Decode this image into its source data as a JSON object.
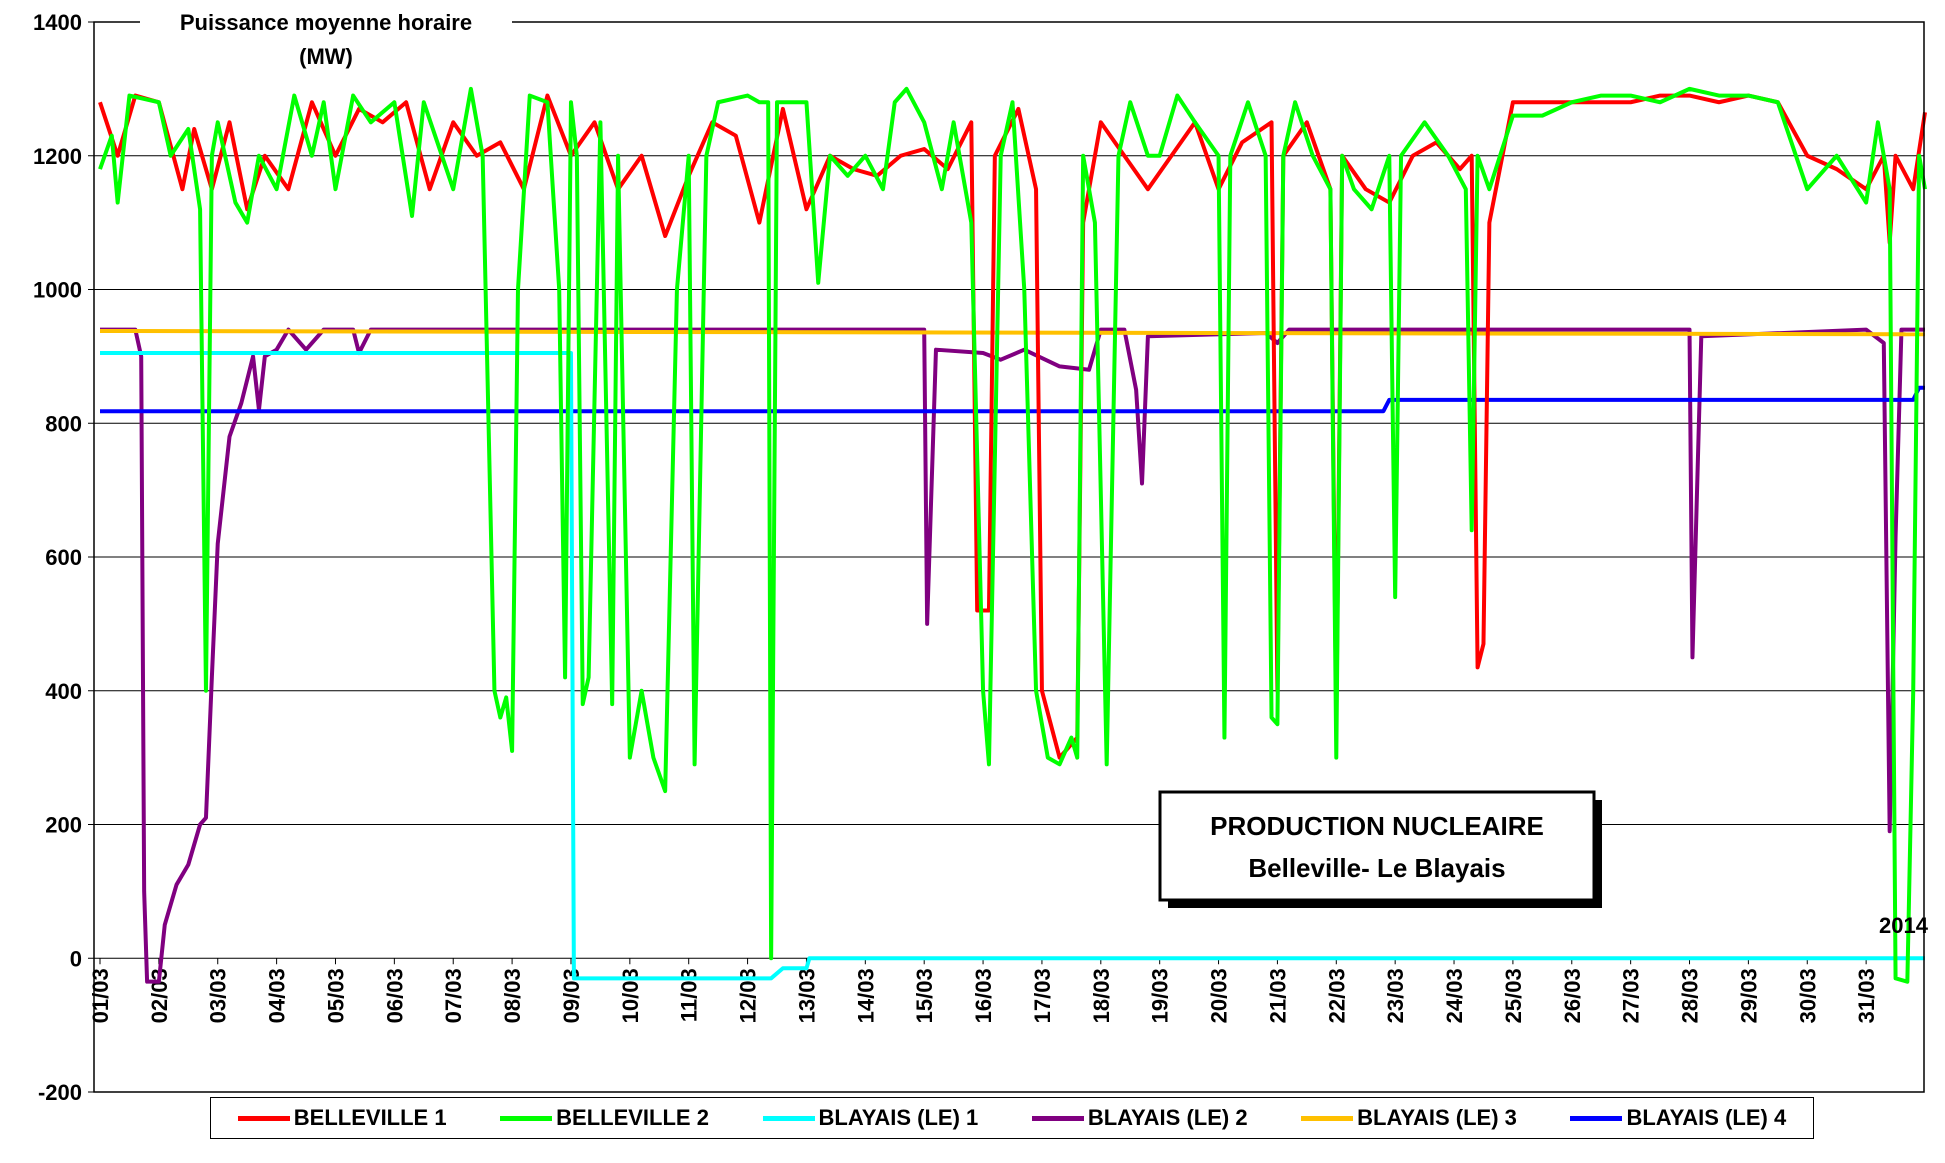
{
  "chart_data": {
    "type": "line",
    "title": "Puissance moyenne horaire",
    "y_label": "(MW)",
    "annotations": [
      "PRODUCTION NUCLEAIRE",
      "Belleville- Le Blayais",
      "2014"
    ],
    "xlim": [
      0,
      31
    ],
    "ylim": [
      -200,
      1400
    ],
    "yticks": [
      -200,
      0,
      200,
      400,
      600,
      800,
      1000,
      1200,
      1400
    ],
    "xticks": [
      {
        "value": 0,
        "label": "01/03"
      },
      {
        "value": 1,
        "label": "02/03"
      },
      {
        "value": 2,
        "label": "03/03"
      },
      {
        "value": 3,
        "label": "04/03"
      },
      {
        "value": 4,
        "label": "05/03"
      },
      {
        "value": 5,
        "label": "06/03"
      },
      {
        "value": 6,
        "label": "07/03"
      },
      {
        "value": 7,
        "label": "08/03"
      },
      {
        "value": 8,
        "label": "09/03"
      },
      {
        "value": 9,
        "label": "10/03"
      },
      {
        "value": 10,
        "label": "11/03"
      },
      {
        "value": 11,
        "label": "12/03"
      },
      {
        "value": 12,
        "label": "13/03"
      },
      {
        "value": 13,
        "label": "14/03"
      },
      {
        "value": 14,
        "label": "15/03"
      },
      {
        "value": 15,
        "label": "16/03"
      },
      {
        "value": 16,
        "label": "17/03"
      },
      {
        "value": 17,
        "label": "18/03"
      },
      {
        "value": 18,
        "label": "19/03"
      },
      {
        "value": 19,
        "label": "20/03"
      },
      {
        "value": 20,
        "label": "21/03"
      },
      {
        "value": 21,
        "label": "22/03"
      },
      {
        "value": 22,
        "label": "23/03"
      },
      {
        "value": 23,
        "label": "24/03"
      },
      {
        "value": 24,
        "label": "25/03"
      },
      {
        "value": 25,
        "label": "26/03"
      },
      {
        "value": 26,
        "label": "27/03"
      },
      {
        "value": 27,
        "label": "28/03"
      },
      {
        "value": 28,
        "label": "29/03"
      },
      {
        "value": 29,
        "label": "30/03"
      },
      {
        "value": 30,
        "label": "31/03"
      }
    ],
    "grid": true,
    "legend": "bottom",
    "series": [
      {
        "name": "BELLEVILLE 1",
        "color": "#ff0000",
        "x": [
          0,
          0.3,
          0.6,
          1.0,
          1.4,
          1.6,
          1.9,
          2.2,
          2.5,
          2.8,
          3.2,
          3.6,
          4.0,
          4.4,
          4.8,
          5.2,
          5.6,
          6.0,
          6.4,
          6.8,
          7.2,
          7.6,
          8.0,
          8.4,
          8.8,
          9.2,
          9.6,
          10.0,
          10.4,
          10.8,
          11.2,
          11.6,
          12.0,
          12.4,
          12.8,
          13.2,
          13.6,
          14.0,
          14.4,
          14.8,
          14.9,
          15.1,
          15.2,
          15.6,
          15.9,
          16.0,
          16.3,
          16.6,
          16.7,
          17.0,
          17.4,
          17.8,
          18.2,
          18.6,
          19.0,
          19.4,
          19.9,
          20.0,
          20.1,
          20.5,
          20.9,
          21.0,
          21.1,
          21.5,
          21.9,
          22.3,
          22.7,
          23.1,
          23.3,
          23.4,
          23.5,
          23.6,
          24.0,
          24.5,
          25.0,
          25.5,
          26.0,
          26.5,
          27.0,
          27.5,
          28.0,
          28.5,
          29.0,
          29.5,
          30.0,
          30.3,
          30.4,
          30.5,
          30.8,
          31.0
        ],
        "values": [
          1280,
          1200,
          1290,
          1280,
          1150,
          1240,
          1150,
          1250,
          1120,
          1200,
          1150,
          1280,
          1200,
          1270,
          1250,
          1280,
          1150,
          1250,
          1200,
          1220,
          1150,
          1290,
          1200,
          1250,
          1150,
          1200,
          1080,
          1170,
          1250,
          1230,
          1100,
          1270,
          1120,
          1200,
          1180,
          1170,
          1200,
          1210,
          1180,
          1250,
          520,
          520,
          1200,
          1270,
          1150,
          400,
          300,
          330,
          1100,
          1250,
          1200,
          1150,
          1200,
          1250,
          1150,
          1220,
          1250,
          400,
          1200,
          1250,
          1150,
          350,
          1200,
          1150,
          1130,
          1200,
          1220,
          1180,
          1200,
          435,
          470,
          1100,
          1280,
          1280,
          1280,
          1280,
          1280,
          1290,
          1290,
          1280,
          1290,
          1280,
          1200,
          1180,
          1150,
          1200,
          1070,
          1200,
          1150,
          1265
        ]
      },
      {
        "name": "BELLEVILLE 2",
        "color": "#00ff00",
        "x": [
          0,
          0.2,
          0.3,
          0.5,
          1.0,
          1.2,
          1.5,
          1.7,
          1.8,
          1.9,
          2.0,
          2.3,
          2.5,
          2.7,
          3.0,
          3.3,
          3.6,
          3.8,
          4.0,
          4.3,
          4.6,
          5.0,
          5.3,
          5.5,
          6.0,
          6.3,
          6.5,
          6.7,
          6.8,
          6.9,
          7.0,
          7.1,
          7.3,
          7.6,
          7.8,
          7.9,
          8.0,
          8.1,
          8.2,
          8.3,
          8.5,
          8.7,
          8.8,
          9.0,
          9.2,
          9.4,
          9.6,
          9.8,
          10.0,
          10.1,
          10.3,
          10.5,
          11.0,
          11.2,
          11.35,
          11.4,
          11.5,
          12.0,
          12.2,
          12.4,
          12.7,
          13.0,
          13.3,
          13.5,
          13.7,
          14.0,
          14.3,
          14.5,
          14.8,
          15.0,
          15.1,
          15.3,
          15.5,
          15.7,
          15.9,
          16.1,
          16.3,
          16.5,
          16.6,
          16.7,
          16.9,
          17.1,
          17.3,
          17.5,
          17.8,
          18.0,
          18.3,
          18.6,
          19.0,
          19.1,
          19.2,
          19.5,
          19.8,
          19.9,
          20.0,
          20.1,
          20.3,
          20.6,
          20.9,
          21.0,
          21.1,
          21.3,
          21.6,
          21.9,
          22.0,
          22.1,
          22.5,
          22.9,
          23.2,
          23.3,
          23.4,
          23.6,
          24.0,
          24.5,
          25.0,
          25.5,
          26.0,
          26.5,
          27.0,
          27.5,
          28.0,
          28.5,
          29.0,
          29.5,
          30.0,
          30.2,
          30.4,
          30.5,
          30.7,
          30.8,
          30.9,
          31.0
        ],
        "values": [
          1180,
          1230,
          1130,
          1290,
          1280,
          1200,
          1240,
          1120,
          400,
          1200,
          1250,
          1130,
          1100,
          1200,
          1150,
          1290,
          1200,
          1280,
          1150,
          1290,
          1250,
          1280,
          1110,
          1280,
          1150,
          1300,
          1200,
          400,
          360,
          390,
          310,
          1000,
          1290,
          1280,
          1000,
          420,
          1280,
          1200,
          380,
          420,
          1250,
          380,
          1200,
          300,
          400,
          300,
          250,
          1000,
          1200,
          290,
          1200,
          1280,
          1290,
          1280,
          1280,
          0,
          1280,
          1280,
          1010,
          1200,
          1170,
          1200,
          1150,
          1280,
          1300,
          1250,
          1150,
          1250,
          1100,
          400,
          290,
          1200,
          1280,
          1000,
          400,
          300,
          290,
          330,
          300,
          1200,
          1100,
          290,
          1200,
          1280,
          1200,
          1200,
          1290,
          1250,
          1200,
          330,
          1200,
          1280,
          1200,
          360,
          350,
          1200,
          1280,
          1200,
          1150,
          300,
          1200,
          1150,
          1120,
          1200,
          540,
          1200,
          1250,
          1200,
          1150,
          640,
          1200,
          1150,
          1260,
          1260,
          1280,
          1290,
          1290,
          1280,
          1300,
          1290,
          1290,
          1280,
          1150,
          1200,
          1130,
          1250,
          1150,
          -30,
          -35,
          400,
          1200,
          1150
        ]
      },
      {
        "name": "BLAYAIS (LE) 1",
        "color": "#00ffff",
        "x": [
          0,
          8.0,
          8.05,
          11.4,
          11.6,
          12.0,
          12.05,
          31
        ],
        "values": [
          905,
          905,
          -30,
          -30,
          -15,
          -15,
          0,
          0
        ]
      },
      {
        "name": "BLAYAIS (LE) 2",
        "color": "#800080",
        "x": [
          0,
          0.6,
          0.7,
          0.75,
          0.8,
          1.0,
          1.1,
          1.3,
          1.5,
          1.7,
          1.8,
          1.9,
          2.0,
          2.2,
          2.4,
          2.6,
          2.7,
          2.8,
          3.0,
          3.2,
          3.5,
          3.8,
          4.3,
          4.4,
          4.6,
          14.0,
          14.05,
          14.2,
          15.0,
          15.3,
          15.7,
          16.3,
          16.8,
          17.0,
          17.4,
          17.6,
          17.7,
          17.8,
          19.8,
          20.0,
          20.2,
          27.0,
          27.05,
          27.2,
          30.0,
          30.3,
          30.4,
          30.5,
          30.6,
          31
        ],
        "values": [
          940,
          940,
          900,
          100,
          -35,
          -35,
          50,
          110,
          140,
          200,
          210,
          420,
          620,
          780,
          830,
          900,
          820,
          900,
          910,
          940,
          910,
          940,
          940,
          905,
          940,
          940,
          500,
          910,
          905,
          895,
          910,
          885,
          880,
          940,
          940,
          850,
          710,
          930,
          935,
          920,
          940,
          940,
          450,
          930,
          940,
          920,
          190,
          630,
          940,
          940
        ]
      },
      {
        "name": "BLAYAIS (LE) 3",
        "color": "#ffc000",
        "x": [
          0,
          31
        ],
        "values": [
          938,
          933
        ]
      },
      {
        "name": "BLAYAIS (LE) 4",
        "color": "#0000ff",
        "x": [
          0,
          21.8,
          21.9,
          30.8,
          30.9,
          31
        ],
        "values": [
          818,
          818,
          835,
          835,
          853,
          853
        ]
      }
    ]
  }
}
